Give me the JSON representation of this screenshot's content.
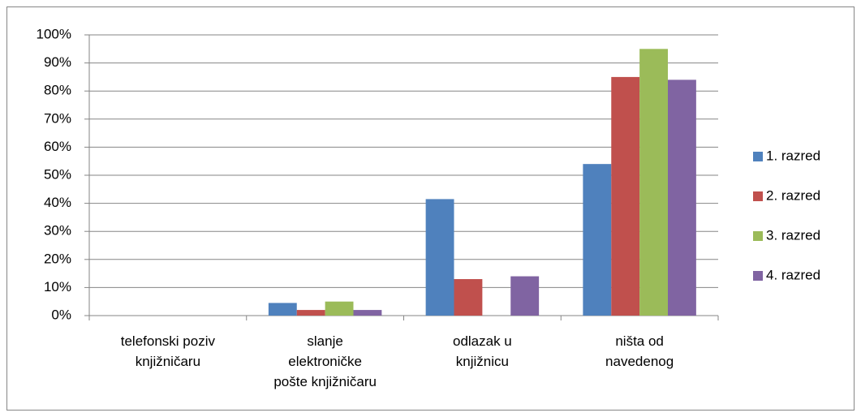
{
  "chart_data": {
    "type": "bar",
    "categories": [
      "telefonski poziv\nknjižničaru",
      "slanje\nelektroničke\npošte knjižničaru",
      "odlazak u\nknjižnicu",
      "ništa od\nnavedenog"
    ],
    "series": [
      {
        "name": "1. razred",
        "color": "#4f81bd",
        "values": [
          0,
          4.5,
          41.5,
          54
        ]
      },
      {
        "name": "2. razred",
        "color": "#c0504d",
        "values": [
          0,
          2,
          13,
          85
        ]
      },
      {
        "name": "3. razred",
        "color": "#9bbb59",
        "values": [
          0,
          5,
          0,
          95
        ]
      },
      {
        "name": "4. razred",
        "color": "#8064a2",
        "values": [
          0,
          2,
          14,
          84
        ]
      }
    ],
    "ylim": [
      0,
      100
    ],
    "yticks": [
      {
        "value": 0,
        "label": "0%"
      },
      {
        "value": 10,
        "label": "10%"
      },
      {
        "value": 20,
        "label": "20%"
      },
      {
        "value": 30,
        "label": "30%"
      },
      {
        "value": 40,
        "label": "40%"
      },
      {
        "value": 50,
        "label": "50%"
      },
      {
        "value": 60,
        "label": "60%"
      },
      {
        "value": 70,
        "label": "70%"
      },
      {
        "value": 80,
        "label": "80%"
      },
      {
        "value": 90,
        "label": "90%"
      },
      {
        "value": 100,
        "label": "100%"
      }
    ],
    "grid": true,
    "legend": "right"
  }
}
